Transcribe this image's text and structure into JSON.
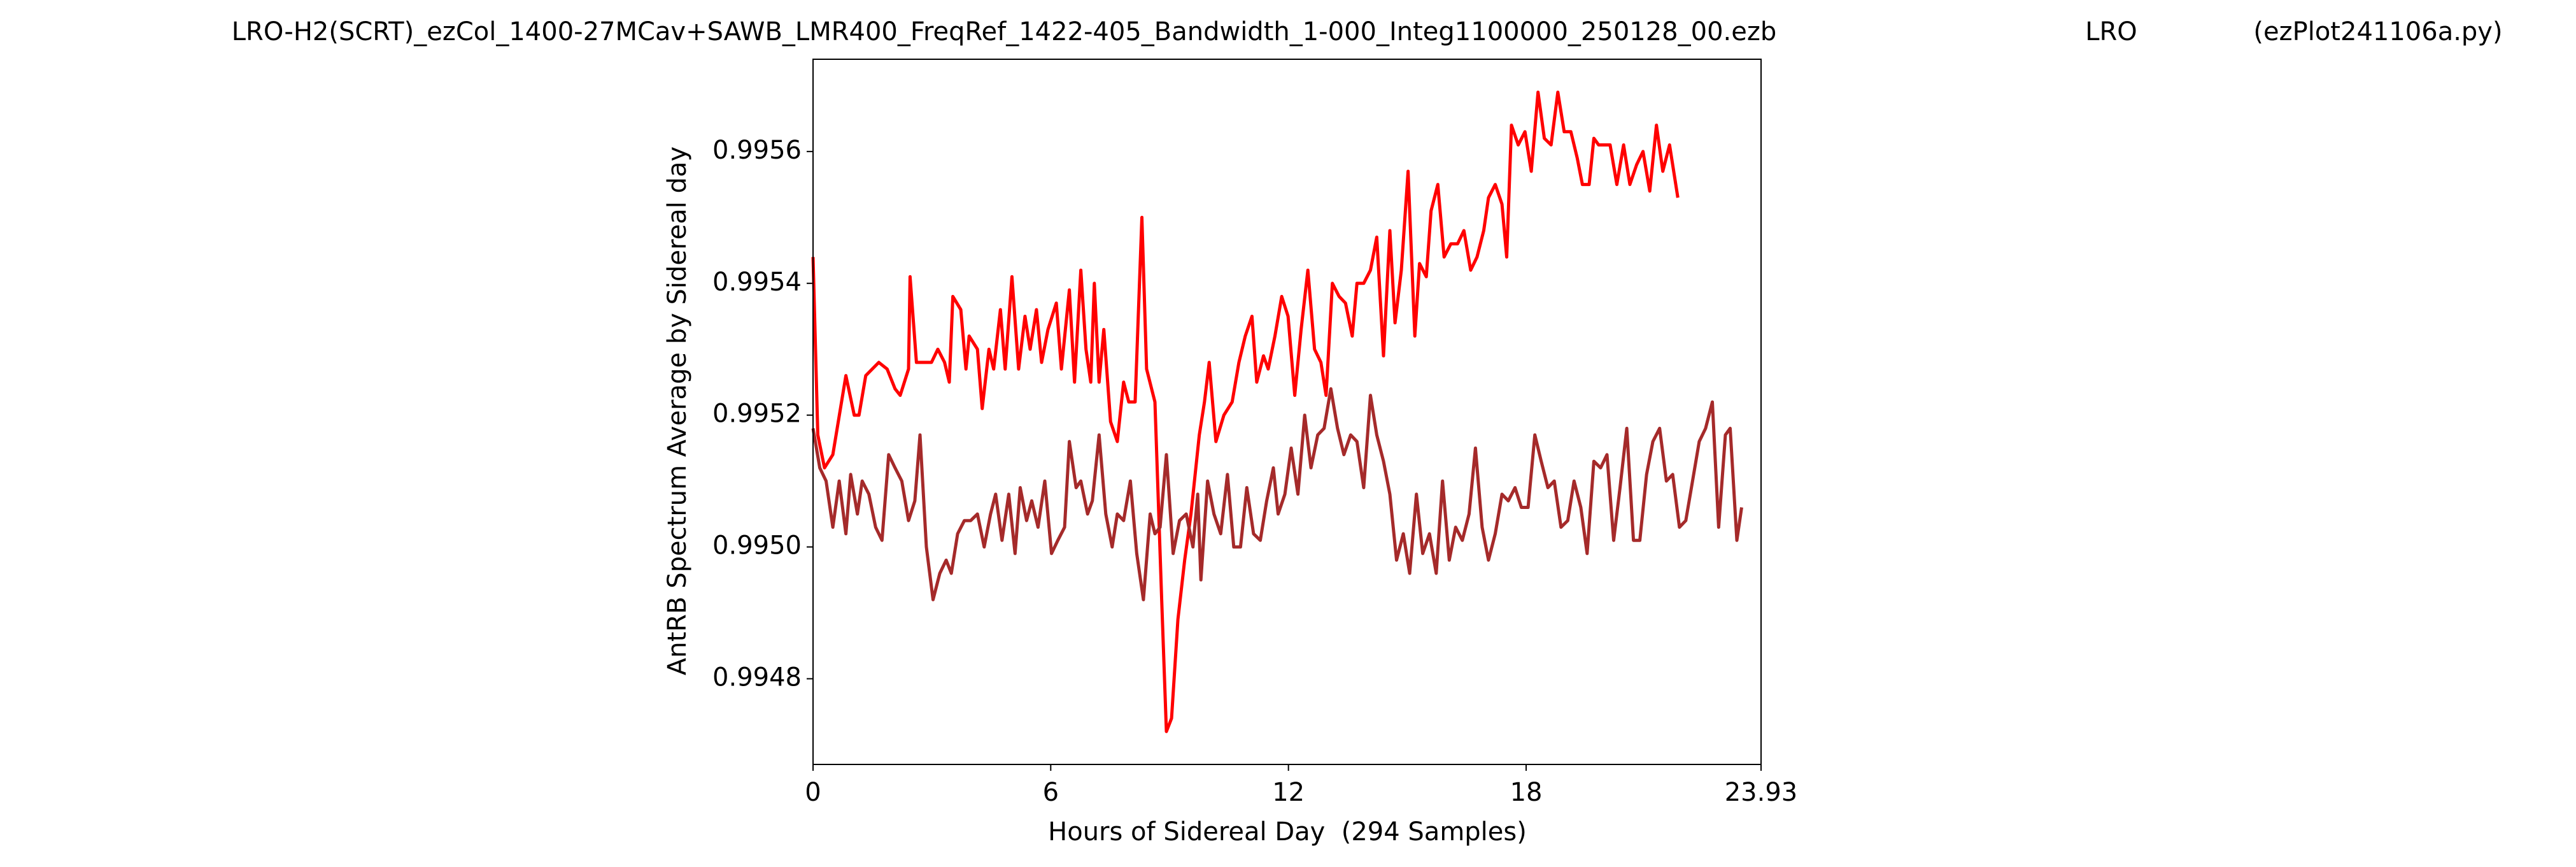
{
  "chart_data": {
    "type": "line",
    "title": "LRO-H2(SCRT)_ezCol_1400-27MCav+SAWB_LMR400_FreqRef_1422-405_Bandwidth_1-000_Integ1100000_250128_00.ezb",
    "annotations": [
      "LRO",
      "(ezPlot241106a.py)"
    ],
    "xlabel": "Hours of Sidereal Day  (294 Samples)",
    "ylabel": "AntRB Spectrum Average by Sidereal day",
    "xlim": [
      0,
      23.93
    ],
    "xticks": [
      0,
      6,
      12,
      18,
      23.93
    ],
    "ylim": [
      0.99467,
      0.99574
    ],
    "yticks": [
      0.9948,
      {
        "value": 0.995,
        "label": "0.9950"
      },
      0.9952,
      0.9954,
      0.9956
    ],
    "series": [
      {
        "color": "#ff0000",
        "x": [
          0.0,
          0.12,
          0.29,
          0.5,
          0.83,
          1.04,
          1.16,
          1.33,
          1.66,
          1.87,
          2.07,
          2.2,
          2.41,
          2.45,
          2.61,
          2.78,
          2.99,
          3.15,
          3.32,
          3.44,
          3.53,
          3.73,
          3.86,
          3.94,
          4.15,
          4.27,
          4.44,
          4.56,
          4.73,
          4.85,
          5.02,
          5.19,
          5.35,
          5.48,
          5.64,
          5.77,
          5.93,
          6.14,
          6.27,
          6.47,
          6.6,
          6.76,
          6.89,
          7.01,
          7.1,
          7.22,
          7.34,
          7.51,
          7.68,
          7.84,
          7.97,
          8.13,
          8.3,
          8.42,
          8.63,
          8.8,
          8.92,
          9.05,
          9.21,
          9.38,
          9.54,
          9.75,
          9.88,
          10.0,
          10.17,
          10.37,
          10.58,
          10.75,
          10.91,
          11.08,
          11.2,
          11.37,
          11.49,
          11.66,
          11.83,
          11.99,
          12.16,
          12.32,
          12.49,
          12.66,
          12.82,
          12.95,
          13.11,
          13.28,
          13.44,
          13.61,
          13.73,
          13.9,
          14.07,
          14.23,
          14.4,
          14.56,
          14.69,
          14.85,
          15.02,
          15.19,
          15.31,
          15.48,
          15.6,
          15.77,
          15.93,
          16.1,
          16.27,
          16.43,
          16.6,
          16.76,
          16.93,
          17.05,
          17.22,
          17.39,
          17.51,
          17.63,
          17.8,
          17.97,
          18.13,
          18.3,
          18.46,
          18.63,
          18.8,
          18.96,
          19.13,
          19.29,
          19.42,
          19.59,
          19.71,
          19.83,
          20.0,
          20.12,
          20.29,
          20.46,
          20.62,
          20.79,
          20.95,
          21.12,
          21.29,
          21.45,
          21.62,
          21.83
        ],
        "values": [
          0.99544,
          0.99517,
          0.99512,
          0.99514,
          0.99526,
          0.9952,
          0.9952,
          0.99526,
          0.99528,
          0.99527,
          0.99524,
          0.99523,
          0.99527,
          0.99541,
          0.99528,
          0.99528,
          0.99528,
          0.9953,
          0.99528,
          0.99525,
          0.99538,
          0.99536,
          0.99527,
          0.99532,
          0.9953,
          0.99521,
          0.9953,
          0.99527,
          0.99536,
          0.99527,
          0.99541,
          0.99527,
          0.99535,
          0.9953,
          0.99536,
          0.99528,
          0.99533,
          0.99537,
          0.99527,
          0.99539,
          0.99525,
          0.99542,
          0.9953,
          0.99525,
          0.9954,
          0.99525,
          0.99533,
          0.99519,
          0.99516,
          0.99525,
          0.99522,
          0.99522,
          0.9955,
          0.99527,
          0.99522,
          0.99492,
          0.99472,
          0.99474,
          0.99489,
          0.99498,
          0.99505,
          0.99517,
          0.99522,
          0.99528,
          0.99516,
          0.9952,
          0.99522,
          0.99528,
          0.99532,
          0.99535,
          0.99525,
          0.99529,
          0.99527,
          0.99532,
          0.99538,
          0.99535,
          0.99523,
          0.99533,
          0.99542,
          0.9953,
          0.99528,
          0.99523,
          0.9954,
          0.99538,
          0.99537,
          0.99532,
          0.9954,
          0.9954,
          0.99542,
          0.99547,
          0.99529,
          0.99548,
          0.99534,
          0.99542,
          0.99557,
          0.99532,
          0.99543,
          0.99541,
          0.99551,
          0.99555,
          0.99544,
          0.99546,
          0.99546,
          0.99548,
          0.99542,
          0.99544,
          0.99548,
          0.99553,
          0.99555,
          0.99552,
          0.99544,
          0.99564,
          0.99561,
          0.99563,
          0.99557,
          0.99569,
          0.99562,
          0.99561,
          0.99569,
          0.99563,
          0.99563,
          0.99559,
          0.99555,
          0.99555,
          0.99562,
          0.99561,
          0.99561,
          0.99561,
          0.99555,
          0.99561,
          0.99555,
          0.99558,
          0.9956,
          0.99554,
          0.99564,
          0.99557,
          0.99561,
          0.99553
        ]
      },
      {
        "color": "#a52a2a",
        "x": [
          0.0,
          0.17,
          0.33,
          0.5,
          0.66,
          0.83,
          0.95,
          1.12,
          1.24,
          1.41,
          1.58,
          1.74,
          1.91,
          2.07,
          2.24,
          2.41,
          2.57,
          2.7,
          2.86,
          3.03,
          3.2,
          3.36,
          3.49,
          3.65,
          3.82,
          3.98,
          4.15,
          4.32,
          4.48,
          4.61,
          4.77,
          4.94,
          5.1,
          5.23,
          5.39,
          5.52,
          5.68,
          5.85,
          6.02,
          6.18,
          6.35,
          6.47,
          6.64,
          6.76,
          6.93,
          7.05,
          7.22,
          7.39,
          7.55,
          7.68,
          7.84,
          8.01,
          8.17,
          8.34,
          8.51,
          8.63,
          8.76,
          8.92,
          9.09,
          9.25,
          9.42,
          9.59,
          9.71,
          9.79,
          9.96,
          10.12,
          10.29,
          10.46,
          10.62,
          10.79,
          10.95,
          11.12,
          11.29,
          11.45,
          11.62,
          11.74,
          11.91,
          12.07,
          12.24,
          12.41,
          12.57,
          12.74,
          12.9,
          13.07,
          13.24,
          13.4,
          13.57,
          13.73,
          13.9,
          14.07,
          14.23,
          14.4,
          14.56,
          14.73,
          14.9,
          15.06,
          15.23,
          15.39,
          15.56,
          15.73,
          15.89,
          16.06,
          16.22,
          16.39,
          16.56,
          16.72,
          16.89,
          17.05,
          17.22,
          17.39,
          17.55,
          17.72,
          17.88,
          18.05,
          18.22,
          18.38,
          18.55,
          18.71,
          18.88,
          19.05,
          19.21,
          19.38,
          19.54,
          19.71,
          19.88,
          20.04,
          20.21,
          20.37,
          20.54,
          20.71,
          20.87,
          21.04,
          21.2,
          21.37,
          21.54,
          21.7,
          21.87,
          22.03,
          22.2,
          22.37,
          22.53,
          22.7,
          22.86,
          23.03,
          23.15,
          23.32,
          23.44
        ],
        "values": [
          0.99518,
          0.99512,
          0.9951,
          0.99503,
          0.9951,
          0.99502,
          0.99511,
          0.99505,
          0.9951,
          0.99508,
          0.99503,
          0.99501,
          0.99514,
          0.99512,
          0.9951,
          0.99504,
          0.99507,
          0.99517,
          0.995,
          0.99492,
          0.99496,
          0.99498,
          0.99496,
          0.99502,
          0.99504,
          0.99504,
          0.99505,
          0.995,
          0.99505,
          0.99508,
          0.99501,
          0.99508,
          0.99499,
          0.99509,
          0.99504,
          0.99507,
          0.99503,
          0.9951,
          0.99499,
          0.99501,
          0.99503,
          0.99516,
          0.99509,
          0.9951,
          0.99505,
          0.99507,
          0.99517,
          0.99505,
          0.995,
          0.99505,
          0.99504,
          0.9951,
          0.99499,
          0.99492,
          0.99505,
          0.99502,
          0.99503,
          0.99514,
          0.99499,
          0.99504,
          0.99505,
          0.995,
          0.99508,
          0.99495,
          0.9951,
          0.99505,
          0.99502,
          0.99511,
          0.995,
          0.995,
          0.99509,
          0.99502,
          0.99501,
          0.99507,
          0.99512,
          0.99505,
          0.99508,
          0.99515,
          0.99508,
          0.9952,
          0.99512,
          0.99517,
          0.99518,
          0.99524,
          0.99518,
          0.99514,
          0.99517,
          0.99516,
          0.99509,
          0.99523,
          0.99517,
          0.99513,
          0.99508,
          0.99498,
          0.99502,
          0.99496,
          0.99508,
          0.99499,
          0.99502,
          0.99496,
          0.9951,
          0.99498,
          0.99503,
          0.99501,
          0.99505,
          0.99515,
          0.99503,
          0.99498,
          0.99502,
          0.99508,
          0.99507,
          0.99509,
          0.99506,
          0.99506,
          0.99517,
          0.99513,
          0.99509,
          0.9951,
          0.99503,
          0.99504,
          0.9951,
          0.99506,
          0.99499,
          0.99513,
          0.99512,
          0.99514,
          0.99501,
          0.99509,
          0.99518,
          0.99501,
          0.99501,
          0.99511,
          0.99516,
          0.99518,
          0.9951,
          0.99511,
          0.99503,
          0.99504,
          0.9951,
          0.99516,
          0.99518,
          0.99522,
          0.99503,
          0.99517,
          0.99518,
          0.99501,
          0.99506
        ]
      }
    ]
  }
}
